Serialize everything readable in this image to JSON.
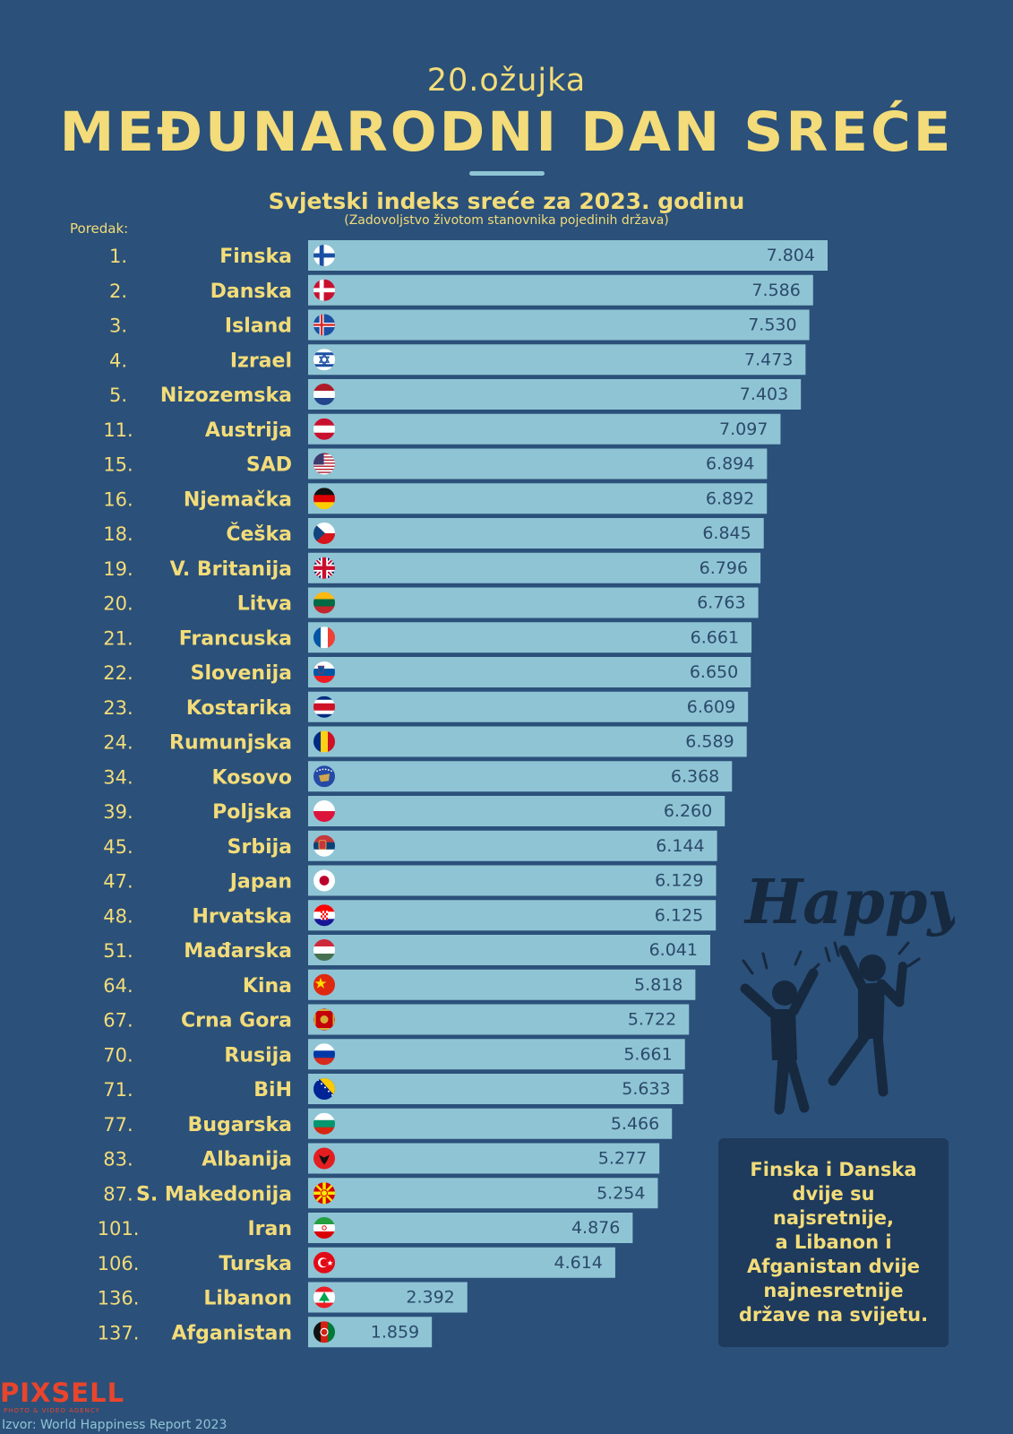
{
  "header": {
    "date": "20.ožujka",
    "title": "MEĐUNARODNI DAN SREĆE",
    "subtitle": "Svjetski indeks sreće za 2023. godinu",
    "subtitle2": "(Zadovoljstvo životom  stanovnika pojedinih država)",
    "rank_header": "Poredak:"
  },
  "colors": {
    "background": "#2b5079",
    "bar": "#8fc4d4",
    "label": "#f3dc79",
    "value": "#2b4a6b"
  },
  "chart_data": {
    "type": "bar",
    "orientation": "horizontal",
    "title": "Svjetski indeks sreće za 2023. godinu",
    "subtitle": "(Zadovoljstvo životom  stanovnika pojedinih država)",
    "xlabel": "",
    "ylabel": "Poredak:",
    "rows": [
      {
        "rank": "1.",
        "country": "Finska",
        "value": 7.804,
        "label": "7.804",
        "flag": "finland-flag"
      },
      {
        "rank": "2.",
        "country": "Danska",
        "value": 7.586,
        "label": "7.586",
        "flag": "denmark-flag"
      },
      {
        "rank": "3.",
        "country": "Island",
        "value": 7.53,
        "label": "7.530",
        "flag": "iceland-flag"
      },
      {
        "rank": "4.",
        "country": "Izrael",
        "value": 7.473,
        "label": "7.473",
        "flag": "israel-flag"
      },
      {
        "rank": "5.",
        "country": "Nizozemska",
        "value": 7.403,
        "label": "7.403",
        "flag": "netherlands-flag"
      },
      {
        "rank": "11.",
        "country": "Austrija",
        "value": 7.097,
        "label": "7.097",
        "flag": "austria-flag"
      },
      {
        "rank": "15.",
        "country": "SAD",
        "value": 6.894,
        "label": "6.894",
        "flag": "usa-flag"
      },
      {
        "rank": "16.",
        "country": "Njemačka",
        "value": 6.892,
        "label": "6.892",
        "flag": "germany-flag"
      },
      {
        "rank": "18.",
        "country": "Češka",
        "value": 6.845,
        "label": "6.845",
        "flag": "czechia-flag"
      },
      {
        "rank": "19.",
        "country": "V. Britanija",
        "value": 6.796,
        "label": "6.796",
        "flag": "uk-flag"
      },
      {
        "rank": "20.",
        "country": "Litva",
        "value": 6.763,
        "label": "6.763",
        "flag": "lithuania-flag"
      },
      {
        "rank": "21.",
        "country": "Francuska",
        "value": 6.661,
        "label": "6.661",
        "flag": "france-flag"
      },
      {
        "rank": "22.",
        "country": "Slovenija",
        "value": 6.65,
        "label": "6.650",
        "flag": "slovenia-flag"
      },
      {
        "rank": "23.",
        "country": "Kostarika",
        "value": 6.609,
        "label": "6.609",
        "flag": "costa-rica-flag"
      },
      {
        "rank": "24.",
        "country": "Rumunjska",
        "value": 6.589,
        "label": "6.589",
        "flag": "romania-flag"
      },
      {
        "rank": "34.",
        "country": "Kosovo",
        "value": 6.368,
        "label": "6.368",
        "flag": "kosovo-flag"
      },
      {
        "rank": "39.",
        "country": "Poljska",
        "value": 6.26,
        "label": "6.260",
        "flag": "poland-flag"
      },
      {
        "rank": "45.",
        "country": "Srbija",
        "value": 6.144,
        "label": "6.144",
        "flag": "serbia-flag"
      },
      {
        "rank": "47.",
        "country": "Japan",
        "value": 6.129,
        "label": "6.129",
        "flag": "japan-flag"
      },
      {
        "rank": "48.",
        "country": "Hrvatska",
        "value": 6.125,
        "label": "6.125",
        "flag": "croatia-flag"
      },
      {
        "rank": "51.",
        "country": "Mađarska",
        "value": 6.041,
        "label": "6.041",
        "flag": "hungary-flag"
      },
      {
        "rank": "64.",
        "country": "Kina",
        "value": 5.818,
        "label": "5.818",
        "flag": "china-flag"
      },
      {
        "rank": "67.",
        "country": "Crna Gora",
        "value": 5.722,
        "label": "5.722",
        "flag": "montenegro-flag"
      },
      {
        "rank": "70.",
        "country": "Rusija",
        "value": 5.661,
        "label": "5.661",
        "flag": "russia-flag"
      },
      {
        "rank": "71.",
        "country": "BiH",
        "value": 5.633,
        "label": "5.633",
        "flag": "bosnia-flag"
      },
      {
        "rank": "77.",
        "country": "Bugarska",
        "value": 5.466,
        "label": "5.466",
        "flag": "bulgaria-flag"
      },
      {
        "rank": "83.",
        "country": "Albanija",
        "value": 5.277,
        "label": "5.277",
        "flag": "albania-flag"
      },
      {
        "rank": "87.",
        "country": "S. Makedonija",
        "value": 5.254,
        "label": "5.254",
        "flag": "north-macedonia-flag"
      },
      {
        "rank": "101.",
        "country": "Iran",
        "value": 4.876,
        "label": "4.876",
        "flag": "iran-flag"
      },
      {
        "rank": "106.",
        "country": "Turska",
        "value": 4.614,
        "label": "4.614",
        "flag": "turkey-flag"
      },
      {
        "rank": "136.",
        "country": "Libanon",
        "value": 2.392,
        "label": "2.392",
        "flag": "lebanon-flag"
      },
      {
        "rank": "137.",
        "country": "Afganistan",
        "value": 1.859,
        "label": "1.859",
        "flag": "afghanistan-flag"
      }
    ]
  },
  "illustration": {
    "word": "Happy",
    "icon": "happy-people-icon"
  },
  "callout": {
    "text": "Finska i Danska\ndvije su najsretnije,\na Libanon i\nAfganistan dvije\nnajnesretnije\ndržave na svijetu."
  },
  "footer": {
    "logo": "PIXSELL",
    "logo_sub": "PHOTO & VIDEO AGENCY",
    "source": "Izvor: World Happiness Report 2023"
  }
}
